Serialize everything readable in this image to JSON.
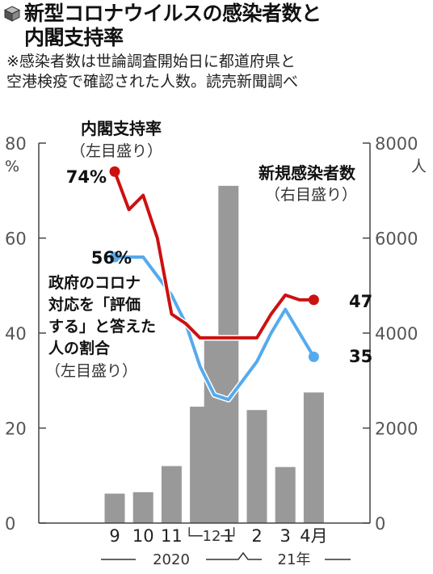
{
  "title": {
    "line1": "新型コロナウイルスの感染者数と",
    "line2": "内閣支持率"
  },
  "note": {
    "line1": "※感染者数は世論調査開始日に都道府県と",
    "line2": "空港検疫で確認された人数。読売新聞調べ"
  },
  "icon": "cube-icon",
  "colors": {
    "approval": "#cc1111",
    "response": "#55aaee",
    "bars": "#999999",
    "axis": "#444444"
  },
  "chart_data": {
    "type": "bar+line",
    "categories": [
      "9",
      "10",
      "11",
      "12",
      "1",
      "2",
      "3",
      "4月"
    ],
    "period_labels": {
      "nov_dec_bracket": "└─12─┘",
      "year_2020": "2020",
      "year_21": "21年"
    },
    "left_axis": {
      "ylim": [
        0,
        80
      ],
      "ticks": [
        "0",
        "20",
        "40",
        "60",
        "80"
      ],
      "unit": "%"
    },
    "right_axis": {
      "ylim": [
        0,
        8000
      ],
      "ticks": [
        "0",
        "2000",
        "4000",
        "6000",
        "8000"
      ],
      "unit": "人"
    },
    "bars": {
      "name": "新規感染者数",
      "sub": "（右目盛り）",
      "x": [
        0,
        1,
        2,
        3,
        3.5,
        4,
        5,
        6,
        7
      ],
      "values": [
        620,
        650,
        1200,
        2450,
        3900,
        7100,
        2380,
        1180,
        2750
      ]
    },
    "approval": {
      "name": "内閣支持率",
      "sub": "（左目盛り）",
      "start_label": "74%",
      "end_label": "47",
      "x": [
        0,
        0.5,
        1,
        1.5,
        2,
        2.5,
        3,
        3.5,
        4,
        4.5,
        5,
        5.5,
        6,
        6.5,
        7
      ],
      "values": [
        74,
        66,
        69,
        60,
        44,
        42,
        39,
        39,
        39,
        39,
        39,
        44,
        48,
        47,
        47
      ]
    },
    "response": {
      "name_lines": [
        "政府のコロナ",
        "対応を「評価",
        "する」と答えた",
        "人の割合"
      ],
      "sub": "（左目盛り）",
      "start_label": "56%",
      "end_label": "35",
      "x": [
        0,
        1,
        2,
        2.5,
        3,
        3.5,
        4,
        4.5,
        5,
        5.5,
        6,
        6.5,
        7
      ],
      "values": [
        56,
        56,
        48,
        42,
        33,
        27,
        26,
        30,
        34,
        40,
        45,
        40,
        35
      ]
    }
  }
}
